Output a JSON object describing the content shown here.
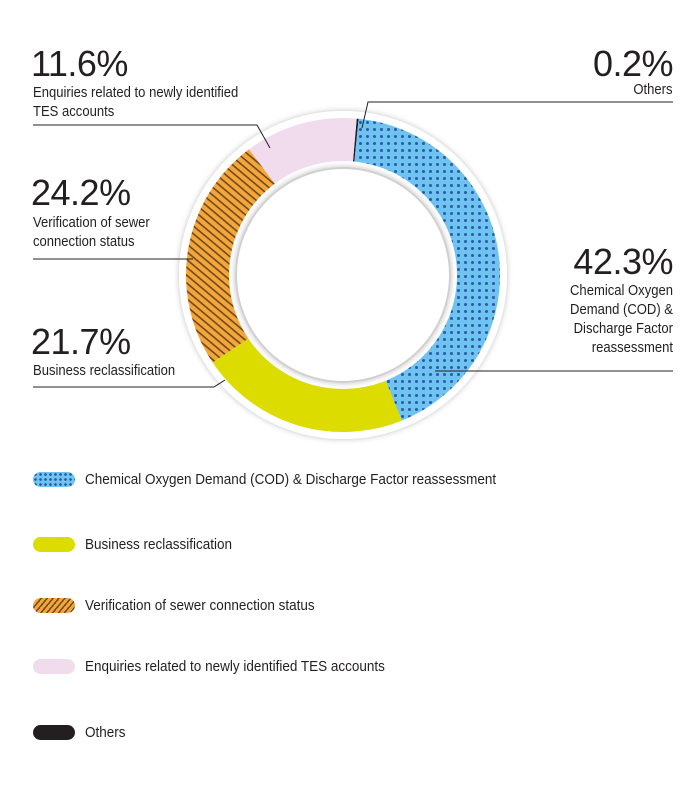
{
  "chart_data": {
    "type": "pie",
    "variant": "donut",
    "segments": [
      {
        "name": "Others",
        "value": 0.2,
        "label": "0.2%",
        "callout": "Others",
        "color": "#231f20",
        "pattern": "solid"
      },
      {
        "name": "Chemical Oxygen Demand (COD) & Discharge Factor reassessment",
        "value": 42.3,
        "label": "42.3%",
        "callout": "Chemical Oxygen Demand (COD) & Discharge Factor reassessment",
        "color": "#6ec3f0",
        "pattern": "dots"
      },
      {
        "name": "Business reclassification",
        "value": 21.7,
        "label": "21.7%",
        "callout": "Business reclassification",
        "color": "#dcdc00",
        "pattern": "solid"
      },
      {
        "name": "Verification of sewer connection status",
        "value": 24.2,
        "label": "24.2%",
        "callout": "Verification of sewer connection status",
        "color": "#f5a63a",
        "pattern": "stripes"
      },
      {
        "name": "Enquiries related to newly identified TES accounts",
        "value": 11.6,
        "label": "11.6%",
        "callout": "Enquiries related to newly identified TES accounts",
        "color": "#f0dcec",
        "pattern": "solid"
      }
    ],
    "legend": [
      "Chemical Oxygen Demand (COD) & Discharge Factor reassessment",
      "Business reclassification",
      "Verification of sewer connection status",
      "Enquiries related to newly identified TES accounts",
      "Others"
    ],
    "legend_placement": "bottom"
  }
}
